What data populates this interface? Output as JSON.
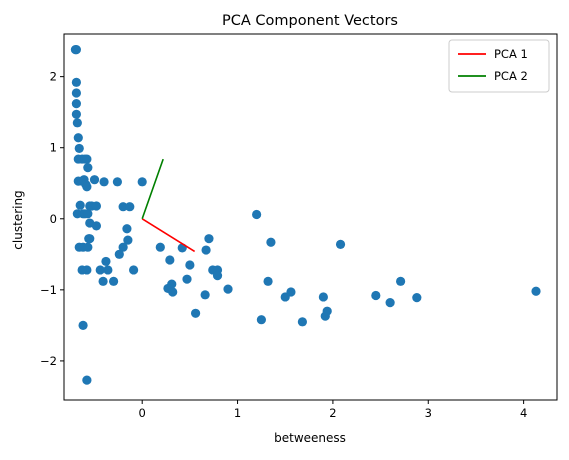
{
  "chart_data": {
    "type": "scatter",
    "title": "PCA Component Vectors",
    "xlabel": "betweeness",
    "ylabel": "clustering",
    "xlim": [
      -0.82,
      4.35
    ],
    "ylim": [
      -2.55,
      2.6
    ],
    "xticks": [
      0,
      1,
      2,
      3,
      4
    ],
    "yticks": [
      -2,
      -1,
      0,
      1,
      2
    ],
    "grid": false,
    "legend_position": "top-right",
    "points_color": "#1f77b4",
    "points": [
      [
        -0.69,
        2.38
      ],
      [
        -0.7,
        2.38
      ],
      [
        -0.69,
        1.92
      ],
      [
        -0.69,
        1.77
      ],
      [
        -0.69,
        1.62
      ],
      [
        -0.69,
        1.47
      ],
      [
        -0.68,
        1.35
      ],
      [
        -0.67,
        1.14
      ],
      [
        -0.66,
        0.99
      ],
      [
        -0.67,
        0.84
      ],
      [
        -0.63,
        0.84
      ],
      [
        -0.6,
        0.84
      ],
      [
        -0.58,
        0.84
      ],
      [
        -0.57,
        0.72
      ],
      [
        -0.67,
        0.53
      ],
      [
        -0.63,
        0.53
      ],
      [
        -0.61,
        0.55
      ],
      [
        -0.59,
        0.48
      ],
      [
        -0.58,
        0.45
      ],
      [
        -0.5,
        0.55
      ],
      [
        -0.4,
        0.52
      ],
      [
        -0.26,
        0.52
      ],
      [
        0.0,
        0.52
      ],
      [
        -0.68,
        0.07
      ],
      [
        -0.65,
        0.19
      ],
      [
        -0.62,
        0.07
      ],
      [
        -0.6,
        0.07
      ],
      [
        -0.57,
        0.07
      ],
      [
        -0.55,
        0.18
      ],
      [
        -0.53,
        0.18
      ],
      [
        -0.48,
        0.18
      ],
      [
        -0.2,
        0.17
      ],
      [
        -0.13,
        0.17
      ],
      [
        -0.55,
        -0.06
      ],
      [
        -0.48,
        -0.1
      ],
      [
        -0.16,
        -0.14
      ],
      [
        -0.56,
        -0.28
      ],
      [
        -0.55,
        -0.28
      ],
      [
        -0.15,
        -0.3
      ],
      [
        -0.66,
        -0.4
      ],
      [
        -0.62,
        -0.4
      ],
      [
        -0.57,
        -0.4
      ],
      [
        -0.2,
        -0.4
      ],
      [
        0.19,
        -0.4
      ],
      [
        0.42,
        -0.41
      ],
      [
        0.7,
        -0.28
      ],
      [
        1.2,
        0.06
      ],
      [
        1.35,
        -0.33
      ],
      [
        2.08,
        -0.36
      ],
      [
        -0.24,
        -0.5
      ],
      [
        -0.38,
        -0.6
      ],
      [
        -0.58,
        -0.72
      ],
      [
        -0.63,
        -0.72
      ],
      [
        -0.44,
        -0.72
      ],
      [
        -0.36,
        -0.72
      ],
      [
        -0.09,
        -0.72
      ],
      [
        0.29,
        -0.58
      ],
      [
        0.5,
        -0.65
      ],
      [
        0.74,
        -0.72
      ],
      [
        0.79,
        -0.72
      ],
      [
        0.67,
        -0.44
      ],
      [
        0.79,
        -0.8
      ],
      [
        -0.41,
        -0.88
      ],
      [
        -0.3,
        -0.88
      ],
      [
        0.47,
        -0.85
      ],
      [
        0.31,
        -0.92
      ],
      [
        0.27,
        -0.98
      ],
      [
        0.32,
        -1.03
      ],
      [
        0.66,
        -1.07
      ],
      [
        0.9,
        -0.99
      ],
      [
        1.32,
        -0.88
      ],
      [
        1.5,
        -1.1
      ],
      [
        1.56,
        -1.03
      ],
      [
        1.9,
        -1.1
      ],
      [
        2.45,
        -1.08
      ],
      [
        2.6,
        -1.18
      ],
      [
        2.71,
        -0.88
      ],
      [
        2.88,
        -1.11
      ],
      [
        4.13,
        -1.02
      ],
      [
        1.68,
        -1.45
      ],
      [
        1.25,
        -1.42
      ],
      [
        1.92,
        -1.37
      ],
      [
        1.94,
        -1.3
      ],
      [
        0.56,
        -1.33
      ],
      [
        -0.62,
        -1.5
      ],
      [
        -0.58,
        -2.27
      ]
    ],
    "series": [
      {
        "name": "PCA 1",
        "color": "#ff0000",
        "x": [
          0,
          0.55
        ],
        "y": [
          0,
          -0.46
        ]
      },
      {
        "name": "PCA 2",
        "color": "#008000",
        "x": [
          0,
          0.22
        ],
        "y": [
          0,
          0.84
        ]
      }
    ]
  }
}
